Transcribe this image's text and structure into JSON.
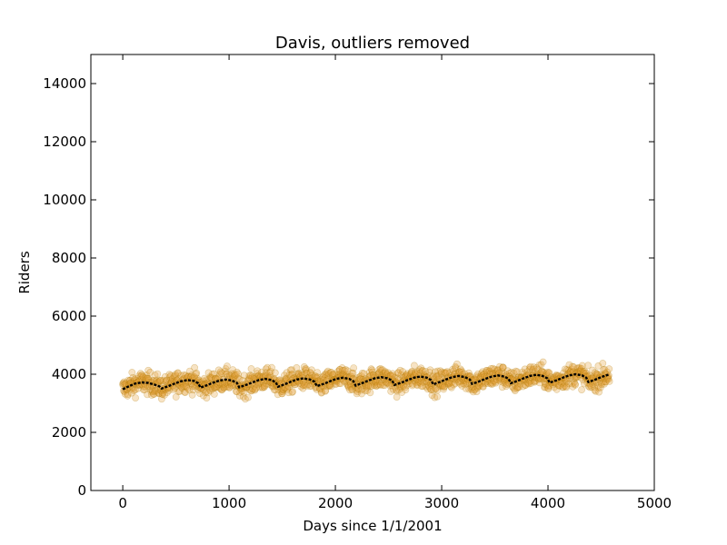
{
  "chart_data": {
    "type": "scatter",
    "title": "Davis, outliers removed",
    "xlabel": "Days since 1/1/2001",
    "ylabel": "Riders",
    "xlim": [
      -300,
      5000
    ],
    "ylim": [
      0,
      15000
    ],
    "x_ticks": [
      0,
      1000,
      2000,
      3000,
      4000,
      5000
    ],
    "y_ticks": [
      0,
      2000,
      4000,
      6000,
      8000,
      10000,
      12000,
      14000
    ],
    "x_tick_labels": [
      "0",
      "1000",
      "2000",
      "3000",
      "4000",
      "5000"
    ],
    "y_tick_labels": [
      "0",
      "2000",
      "4000",
      "6000",
      "8000",
      "10000",
      "12000",
      "14000"
    ],
    "grid": false,
    "series": [
      {
        "kind": "scatter",
        "color": "#e3a13b",
        "edge_color": "#b07800",
        "opacity": 0.3,
        "x_range": [
          0,
          4580
        ],
        "approx_mean": 3800,
        "approx_spread": [
          2700,
          4600
        ]
      },
      {
        "kind": "line",
        "color": "#000000",
        "x": [
          0,
          60,
          120,
          180,
          240,
          300,
          345,
          365,
          430,
          490,
          550,
          610,
          670,
          710,
          730,
          790,
          850,
          910,
          970,
          1030,
          1075,
          1095,
          1160,
          1220,
          1280,
          1340,
          1400,
          1440,
          1460,
          1520,
          1580,
          1640,
          1700,
          1760,
          1805,
          1825,
          1890,
          1950,
          2010,
          2070,
          2130,
          2170,
          2190,
          2250,
          2310,
          2370,
          2430,
          2490,
          2535,
          2555,
          2620,
          2680,
          2740,
          2800,
          2860,
          2900,
          2920,
          2980,
          3040,
          3100,
          3160,
          3220,
          3265,
          3285,
          3350,
          3410,
          3470,
          3530,
          3590,
          3630,
          3650,
          3710,
          3770,
          3830,
          3890,
          3950,
          3995,
          4015,
          4080,
          4140,
          4200,
          4260,
          4320,
          4360,
          4380,
          4440,
          4500,
          4580
        ],
        "y": [
          3480,
          3590,
          3680,
          3720,
          3700,
          3640,
          3580,
          3510,
          3590,
          3680,
          3760,
          3800,
          3770,
          3690,
          3540,
          3620,
          3710,
          3780,
          3820,
          3780,
          3700,
          3550,
          3630,
          3720,
          3800,
          3840,
          3800,
          3720,
          3570,
          3650,
          3740,
          3820,
          3860,
          3820,
          3740,
          3590,
          3670,
          3760,
          3840,
          3880,
          3840,
          3760,
          3610,
          3690,
          3780,
          3860,
          3900,
          3860,
          3780,
          3630,
          3710,
          3800,
          3880,
          3920,
          3880,
          3800,
          3650,
          3730,
          3820,
          3900,
          3940,
          3900,
          3820,
          3670,
          3750,
          3840,
          3920,
          3960,
          3920,
          3840,
          3690,
          3770,
          3860,
          3940,
          3980,
          3940,
          3860,
          3710,
          3790,
          3880,
          3960,
          4000,
          3960,
          3880,
          3730,
          3810,
          3900,
          4000
        ]
      }
    ]
  }
}
